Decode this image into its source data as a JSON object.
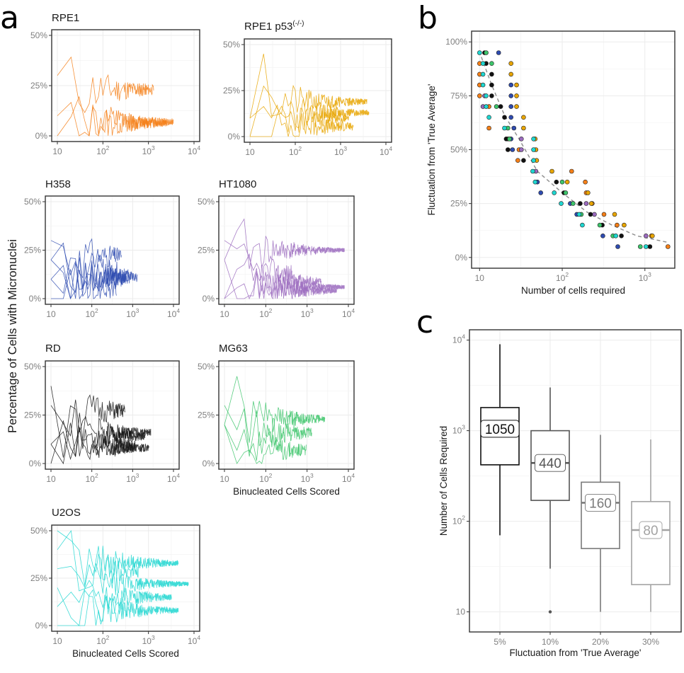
{
  "panel_labels": {
    "a": "a",
    "b": "b",
    "c": "c"
  },
  "chart_data": [
    {
      "id": "panel-a",
      "type": "line",
      "shared_ylabel": "Percentage of Cells with Micronuclei",
      "xlabel": "Binucleated Cells Scored",
      "x_scale": "log10",
      "xlim": [
        10,
        10000
      ],
      "ylim": [
        0,
        0.5
      ],
      "x_ticks": [
        10,
        100,
        1000,
        10000
      ],
      "x_tick_labels": [
        {
          "base": "10",
          "exp": ""
        },
        {
          "base": "10",
          "exp": "2"
        },
        {
          "base": "10",
          "exp": "3"
        },
        {
          "base": "10",
          "exp": "4"
        }
      ],
      "y_ticks": [
        0,
        0.25,
        0.5
      ],
      "y_tick_labels": [
        "0%",
        "25%",
        "50%"
      ],
      "grid": true,
      "facets": [
        {
          "title": "RPE1",
          "superscript": "",
          "color": "#F57F17",
          "show_xlabel": false,
          "series": [
            {
              "start": 0.3,
              "mean": 0.23,
              "n_max": 1300,
              "seed": 11
            },
            {
              "start": 0.1,
              "mean": 0.07,
              "n_max": 3500,
              "seed": 12
            },
            {
              "start": 0.0,
              "mean": 0.065,
              "n_max": 2500,
              "seed": 13
            }
          ]
        },
        {
          "title": "RPE1 p53",
          "superscript": "(-/-)",
          "color": "#E8A500",
          "show_xlabel": false,
          "series": [
            {
              "start": 0.1,
              "mean": 0.19,
              "n_max": 3800,
              "seed": 21,
              "peak": 0.45
            },
            {
              "start": 0.0,
              "mean": 0.13,
              "n_max": 4200,
              "seed": 22
            },
            {
              "start": 0.0,
              "mean": 0.1,
              "n_max": 1500,
              "seed": 23
            },
            {
              "start": 0.1,
              "mean": 0.055,
              "n_max": 1900,
              "seed": 24
            }
          ]
        },
        {
          "title": "H358",
          "superscript": "",
          "color": "#2E4BB0",
          "show_xlabel": false,
          "series": [
            {
              "start": 0.3,
              "mean": 0.22,
              "n_max": 530,
              "seed": 31
            },
            {
              "start": 0.2,
              "mean": 0.15,
              "n_max": 420,
              "seed": 32
            },
            {
              "start": 0.1,
              "mean": 0.11,
              "n_max": 1300,
              "seed": 33
            },
            {
              "start": 0.0,
              "mean": 0.12,
              "n_max": 800,
              "seed": 34
            },
            {
              "start": 0.2,
              "mean": 0.1,
              "n_max": 600,
              "seed": 35
            },
            {
              "start": 0.1,
              "mean": 0.05,
              "n_max": 400,
              "seed": 36
            }
          ]
        },
        {
          "title": "HT1080",
          "superscript": "",
          "color": "#9B6BBE",
          "show_xlabel": false,
          "series": [
            {
              "start": 0.2,
              "mean": 0.25,
              "n_max": 8000,
              "seed": 41,
              "peak": 0.35
            },
            {
              "start": 0.3,
              "mean": 0.13,
              "n_max": 430,
              "seed": 42
            },
            {
              "start": 0.0,
              "mean": 0.09,
              "n_max": 2200,
              "seed": 43
            },
            {
              "start": 0.0,
              "mean": 0.06,
              "n_max": 8000,
              "seed": 44
            },
            {
              "start": 0.2,
              "mean": 0.04,
              "n_max": 5200,
              "seed": 45
            }
          ]
        },
        {
          "title": "RD",
          "superscript": "",
          "color": "#111111",
          "show_xlabel": false,
          "series": [
            {
              "start": 0.3,
              "mean": 0.27,
              "n_max": 650,
              "seed": 51
            },
            {
              "start": 0.4,
              "mean": 0.16,
              "n_max": 2800,
              "seed": 52
            },
            {
              "start": 0.1,
              "mean": 0.14,
              "n_max": 2000,
              "seed": 53
            },
            {
              "start": 0.0,
              "mean": 0.08,
              "n_max": 2500,
              "seed": 54
            },
            {
              "start": 0.1,
              "mean": 0.09,
              "n_max": 1200,
              "seed": 55
            }
          ]
        },
        {
          "title": "MG63",
          "superscript": "",
          "color": "#3CC46A",
          "show_xlabel": true,
          "series": [
            {
              "start": 0.2,
              "mean": 0.23,
              "n_max": 2700,
              "seed": 61,
              "peak": 0.45
            },
            {
              "start": 0.3,
              "mean": 0.16,
              "n_max": 1300,
              "seed": 62
            },
            {
              "start": 0.2,
              "mean": 0.12,
              "n_max": 280,
              "seed": 63
            },
            {
              "start": 0.2,
              "mean": 0.07,
              "n_max": 950,
              "seed": 64
            }
          ]
        },
        {
          "title": "U2OS",
          "superscript": "",
          "color": "#1ED6D0",
          "show_xlabel": true,
          "series": [
            {
              "start": 0.4,
              "mean": 0.33,
              "n_max": 4500,
              "seed": 71,
              "peak": 0.5
            },
            {
              "start": 0.5,
              "mean": 0.29,
              "n_max": 600,
              "seed": 72
            },
            {
              "start": 0.3,
              "mean": 0.22,
              "n_max": 7500,
              "seed": 73
            },
            {
              "start": 0.1,
              "mean": 0.15,
              "n_max": 3200,
              "seed": 74
            },
            {
              "start": 0.2,
              "mean": 0.08,
              "n_max": 4500,
              "seed": 75
            },
            {
              "start": 0.0,
              "mean": 0.1,
              "n_max": 350,
              "seed": 76
            }
          ]
        }
      ]
    },
    {
      "id": "panel-b",
      "type": "scatter",
      "xlabel": "Number of cells required",
      "ylabel": "Fluctuation from 'True Average'",
      "x_scale": "log10",
      "xlim": [
        8,
        2300
      ],
      "ylim": [
        -0.05,
        1.05
      ],
      "x_ticks": [
        10,
        100,
        1000
      ],
      "x_tick_labels": [
        {
          "base": "10",
          "exp": ""
        },
        {
          "base": "10",
          "exp": "2"
        },
        {
          "base": "10",
          "exp": "3"
        }
      ],
      "y_ticks": [
        0,
        0.25,
        0.5,
        0.75,
        1.0
      ],
      "y_tick_labels": [
        "0%",
        "25%",
        "50%",
        "75%",
        "100%"
      ],
      "grid": true,
      "trend": {
        "style": "dashed",
        "color": "#8c8c8c",
        "points": [
          [
            10.5,
            0.93
          ],
          [
            14,
            0.8
          ],
          [
            20,
            0.66
          ],
          [
            30,
            0.55
          ],
          [
            50,
            0.4
          ],
          [
            100,
            0.3
          ],
          [
            200,
            0.21
          ],
          [
            400,
            0.15
          ],
          [
            800,
            0.1
          ],
          [
            1900,
            0.07
          ]
        ]
      },
      "groups": [
        {
          "name": "RPE1",
          "color": "#F57F17",
          "points": [
            [
              10,
              0.9
            ],
            [
              10,
              0.85
            ],
            [
              10,
              0.8
            ],
            [
              10,
              0.75
            ],
            [
              13,
              0.7
            ],
            [
              13,
              0.6
            ],
            [
              22,
              0.55
            ],
            [
              30,
              0.5
            ],
            [
              29,
              0.45
            ],
            [
              190,
              0.35
            ],
            [
              195,
              0.3
            ],
            [
              230,
              0.25
            ],
            [
              320,
              0.2
            ],
            [
              460,
              0.15
            ],
            [
              1200,
              0.1
            ],
            [
              1900,
              0.05
            ],
            [
              130,
              0.4
            ]
          ]
        },
        {
          "name": "RPE1 p53",
          "color": "#E8A500",
          "points": [
            [
              24,
              0.9
            ],
            [
              24,
              0.85
            ],
            [
              28,
              0.8
            ],
            [
              28,
              0.75
            ],
            [
              28,
              0.7
            ],
            [
              34,
              0.65
            ],
            [
              34,
              0.6
            ],
            [
              47,
              0.55
            ],
            [
              48,
              0.5
            ],
            [
              49,
              0.45
            ],
            [
              75,
              0.4
            ],
            [
              115,
              0.35
            ],
            [
              205,
              0.3
            ],
            [
              225,
              0.25
            ],
            [
              430,
              0.2
            ],
            [
              560,
              0.15
            ],
            [
              1230,
              0.1
            ]
          ]
        },
        {
          "name": "H358",
          "color": "#2E4BB0",
          "points": [
            [
              17,
              0.95
            ],
            [
              24,
              0.8
            ],
            [
              24,
              0.75
            ],
            [
              24,
              0.7
            ],
            [
              24,
              0.65
            ],
            [
              26,
              0.6
            ],
            [
              24,
              0.55
            ],
            [
              25,
              0.5
            ],
            [
              50,
              0.35
            ],
            [
              55,
              0.3
            ],
            [
              125,
              0.25
            ],
            [
              150,
              0.2
            ],
            [
              310,
              0.1
            ],
            [
              470,
              0.05
            ]
          ]
        },
        {
          "name": "HT1080",
          "color": "#9B6BBE",
          "points": [
            [
              11.5,
              0.75
            ],
            [
              11,
              0.7
            ],
            [
              32,
              0.55
            ],
            [
              32,
              0.5
            ],
            [
              48,
              0.4
            ],
            [
              195,
              0.25
            ],
            [
              245,
              0.2
            ],
            [
              1030,
              0.1
            ]
          ]
        },
        {
          "name": "RD",
          "color": "#111111",
          "points": [
            [
              11.5,
              0.95
            ],
            [
              12,
              0.9
            ],
            [
              14,
              0.85
            ],
            [
              14,
              0.8
            ],
            [
              14,
              0.75
            ],
            [
              18,
              0.7
            ],
            [
              20,
              0.65
            ],
            [
              21,
              0.55
            ],
            [
              22,
              0.5
            ],
            [
              34,
              0.45
            ],
            [
              85,
              0.35
            ],
            [
              105,
              0.3
            ],
            [
              165,
              0.25
            ],
            [
              220,
              0.2
            ],
            [
              305,
              0.15
            ],
            [
              520,
              0.1
            ],
            [
              1150,
              0.05
            ]
          ]
        },
        {
          "name": "MG63",
          "color": "#3CC46A",
          "points": [
            [
              12,
              0.95
            ],
            [
              14,
              0.9
            ],
            [
              16,
              0.7
            ],
            [
              22,
              0.6
            ],
            [
              23,
              0.55
            ],
            [
              100,
              0.35
            ],
            [
              110,
              0.3
            ],
            [
              135,
              0.25
            ],
            [
              170,
              0.2
            ],
            [
              285,
              0.15
            ],
            [
              410,
              0.1
            ],
            [
              880,
              0.05
            ]
          ]
        },
        {
          "name": "U2OS",
          "color": "#1ED6D0",
          "points": [
            [
              10,
              0.95
            ],
            [
              11,
              0.9
            ],
            [
              11,
              0.85
            ],
            [
              11,
              0.8
            ],
            [
              12,
              0.75
            ],
            [
              12,
              0.7
            ],
            [
              13,
              0.65
            ],
            [
              20,
              0.6
            ],
            [
              45,
              0.55
            ],
            [
              45,
              0.5
            ],
            [
              45,
              0.45
            ],
            [
              44,
              0.4
            ],
            [
              47,
              0.35
            ],
            [
              80,
              0.3
            ],
            [
              97,
              0.25
            ],
            [
              160,
              0.2
            ],
            [
              175,
              0.15
            ],
            [
              445,
              0.1
            ],
            [
              1030,
              0.05
            ]
          ]
        }
      ]
    },
    {
      "id": "panel-c",
      "type": "box",
      "xlabel": "Fluctuation from 'True Average'",
      "ylabel": "Number of Cells Required",
      "y_scale": "log10",
      "ylim": [
        6,
        13000
      ],
      "y_ticks": [
        10,
        100,
        1000,
        10000
      ],
      "y_tick_labels": [
        {
          "base": "10",
          "exp": ""
        },
        {
          "base": "10",
          "exp": "2"
        },
        {
          "base": "10",
          "exp": "3"
        },
        {
          "base": "10",
          "exp": "4"
        }
      ],
      "grid": true,
      "categories": [
        "5%",
        "10%",
        "20%",
        "30%"
      ],
      "boxes": [
        {
          "category": "5%",
          "color": "#111111",
          "whisker_low": 70,
          "q1": 420,
          "median": 1050,
          "q3": 1800,
          "whisker_high": 9000,
          "label": "1050",
          "outliers": []
        },
        {
          "category": "10%",
          "color": "#555555",
          "whisker_low": 30,
          "q1": 170,
          "median": 440,
          "q3": 1000,
          "whisker_high": 3000,
          "label": "440",
          "outliers": [
            10
          ]
        },
        {
          "category": "20%",
          "color": "#7a7a7a",
          "whisker_low": 10,
          "q1": 50,
          "median": 160,
          "q3": 270,
          "whisker_high": 900,
          "label": "160",
          "outliers": []
        },
        {
          "category": "30%",
          "color": "#a3a3a3",
          "whisker_low": 10,
          "q1": 20,
          "median": 80,
          "q3": 165,
          "whisker_high": 800,
          "label": "80",
          "outliers": []
        }
      ]
    }
  ]
}
